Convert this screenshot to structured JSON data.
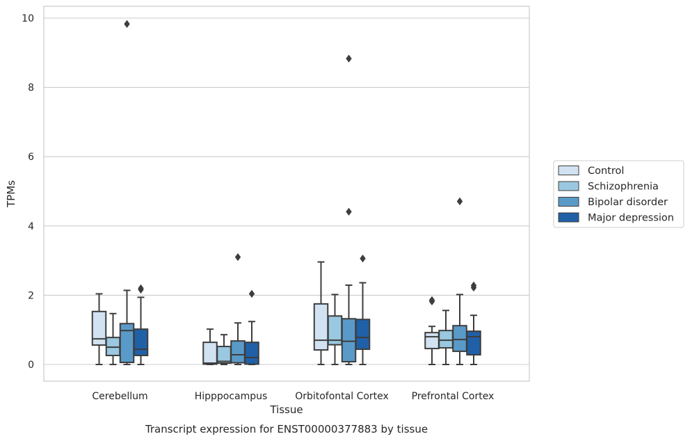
{
  "chart_data": {
    "type": "box",
    "title": "Transcript expression for ENST00000377883 by tissue",
    "xlabel": "Tissue",
    "ylabel": "TPMs",
    "ylim": [
      -0.45,
      10.35
    ],
    "yticks": [
      0,
      2,
      4,
      6,
      8,
      10
    ],
    "grid": true,
    "legend_position": "right",
    "categories": [
      "Cerebellum",
      "Hipppocampus",
      "Orbitofontal Cortex",
      "Prefrontal Cortex"
    ],
    "series": [
      {
        "name": "Control",
        "color": "#d1e2f2",
        "boxes": [
          {
            "whislo": 0.0,
            "q1": 0.56,
            "med": 0.74,
            "q3": 1.53,
            "whishi": 2.04,
            "fliers": []
          },
          {
            "whislo": 0.0,
            "q1": 0.01,
            "med": 0.04,
            "q3": 0.64,
            "whishi": 1.02,
            "fliers": []
          },
          {
            "whislo": 0.0,
            "q1": 0.42,
            "med": 0.7,
            "q3": 1.75,
            "whishi": 2.96,
            "fliers": []
          },
          {
            "whislo": 0.0,
            "q1": 0.46,
            "med": 0.8,
            "q3": 0.92,
            "whishi": 1.1,
            "fliers": [
              1.82,
              1.86
            ]
          }
        ]
      },
      {
        "name": "Schizophrenia",
        "color": "#9ac8e0",
        "boxes": [
          {
            "whislo": 0.0,
            "q1": 0.26,
            "med": 0.5,
            "q3": 0.78,
            "whishi": 1.47,
            "fliers": []
          },
          {
            "whislo": 0.0,
            "q1": 0.04,
            "med": 0.09,
            "q3": 0.52,
            "whishi": 0.86,
            "fliers": []
          },
          {
            "whislo": 0.0,
            "q1": 0.57,
            "med": 0.7,
            "q3": 1.4,
            "whishi": 2.02,
            "fliers": []
          },
          {
            "whislo": 0.0,
            "q1": 0.48,
            "med": 0.7,
            "q3": 0.98,
            "whishi": 1.56,
            "fliers": []
          }
        ]
      },
      {
        "name": "Bipolar disorder",
        "color": "#5a9ac8",
        "boxes": [
          {
            "whislo": 0.0,
            "q1": 0.06,
            "med": 0.98,
            "q3": 1.18,
            "whishi": 2.14,
            "fliers": [
              9.83
            ]
          },
          {
            "whislo": 0.0,
            "q1": 0.05,
            "med": 0.28,
            "q3": 0.68,
            "whishi": 1.2,
            "fliers": [
              3.1
            ]
          },
          {
            "whislo": 0.0,
            "q1": 0.08,
            "med": 0.67,
            "q3": 1.32,
            "whishi": 2.29,
            "fliers": [
              4.41,
              8.83
            ]
          },
          {
            "whislo": 0.0,
            "q1": 0.38,
            "med": 0.72,
            "q3": 1.12,
            "whishi": 2.02,
            "fliers": [
              4.71
            ]
          }
        ]
      },
      {
        "name": "Major depression",
        "color": "#2060a7",
        "boxes": [
          {
            "whislo": 0.0,
            "q1": 0.26,
            "med": 0.44,
            "q3": 1.02,
            "whishi": 1.94,
            "fliers": [
              2.16,
              2.2
            ]
          },
          {
            "whislo": 0.0,
            "q1": 0.01,
            "med": 0.2,
            "q3": 0.64,
            "whishi": 1.24,
            "fliers": [
              2.04
            ]
          },
          {
            "whislo": 0.0,
            "q1": 0.44,
            "med": 0.78,
            "q3": 1.3,
            "whishi": 2.36,
            "fliers": [
              3.06
            ]
          },
          {
            "whislo": 0.0,
            "q1": 0.28,
            "med": 0.8,
            "q3": 0.96,
            "whishi": 1.42,
            "fliers": [
              2.22,
              2.28
            ]
          }
        ]
      }
    ]
  }
}
